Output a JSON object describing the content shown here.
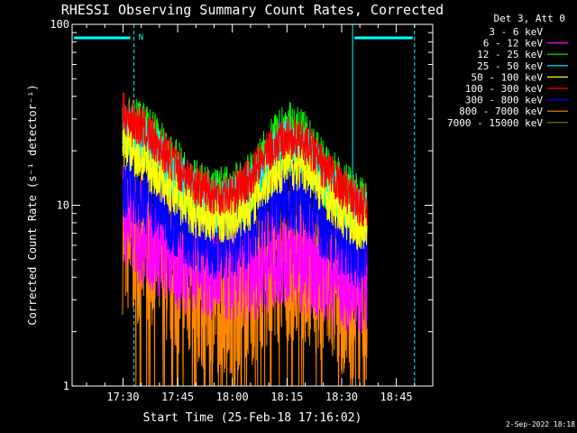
{
  "chart_data": {
    "type": "line",
    "title": "RHESSI Observing Summary Count Rates, Corrected",
    "xlabel": "Start Time (25-Feb-18 17:16:02)",
    "ylabel": "Corrected Count Rate (s⁻¹ detector⁻¹)",
    "yscale": "log",
    "ylim": [
      1,
      100
    ],
    "xlim": [
      "17:16:02",
      "18:55:00"
    ],
    "x_ticks": [
      "17:30",
      "17:45",
      "18:00",
      "18:15",
      "18:30",
      "18:45"
    ],
    "y_ticks": [
      "1",
      "10",
      "100"
    ],
    "legend_title": "Det 3, Att 0",
    "legend_position": "right",
    "timestamp": "2-Sep-2022 18:18",
    "flag_label": "N",
    "grid": false,
    "data_start": "17:29",
    "data_end": "18:37",
    "night_intervals": [
      [
        "17:16",
        "17:33"
      ],
      [
        "18:33",
        "18:50"
      ]
    ],
    "series": [
      {
        "name": "3 - 6 keV",
        "color": "#000000",
        "values": []
      },
      {
        "name": "6 - 12 keV",
        "color": "#ff00ff",
        "x": [
          "17:30",
          "17:35",
          "17:40",
          "17:45",
          "17:50",
          "17:55",
          "18:00",
          "18:05",
          "18:10",
          "18:15",
          "18:20",
          "18:25",
          "18:30",
          "18:35"
        ],
        "values": [
          9,
          7,
          6,
          5,
          5,
          4.5,
          4.3,
          4.5,
          5,
          5.5,
          5,
          4.5,
          4,
          3.8
        ]
      },
      {
        "name": "12 - 25 keV",
        "color": "#00ff00",
        "x": [
          "17:30",
          "17:35",
          "17:40",
          "17:45",
          "17:50",
          "17:55",
          "18:00",
          "18:05",
          "18:10",
          "18:15",
          "18:20",
          "18:25",
          "18:30",
          "18:35"
        ],
        "values": [
          30,
          25,
          20,
          15,
          12,
          11,
          11,
          13,
          19,
          25,
          22,
          15,
          12,
          10
        ]
      },
      {
        "name": "25 - 50 keV",
        "color": "#00ffff",
        "x": [
          "17:30",
          "17:35",
          "17:40",
          "17:45",
          "17:50",
          "17:55",
          "18:00",
          "18:05",
          "18:10",
          "18:15",
          "18:20",
          "18:25",
          "18:30",
          "18:35"
        ],
        "values": [
          28,
          23,
          18,
          14,
          11,
          10,
          10,
          12,
          17,
          22,
          20,
          14,
          11,
          9
        ]
      },
      {
        "name": "50 - 100 keV",
        "color": "#ffff00",
        "x": [
          "17:30",
          "17:35",
          "17:40",
          "17:45",
          "17:50",
          "17:55",
          "18:00",
          "18:05",
          "18:10",
          "18:15",
          "18:20",
          "18:25",
          "18:30",
          "18:35"
        ],
        "values": [
          22,
          18,
          14,
          11,
          9,
          8.5,
          8.5,
          10,
          14,
          17,
          16,
          12,
          9,
          7.5
        ]
      },
      {
        "name": "100 - 300 keV",
        "color": "#ff0000",
        "x": [
          "17:30",
          "17:35",
          "17:40",
          "17:45",
          "17:50",
          "17:55",
          "18:00",
          "18:05",
          "18:10",
          "18:15",
          "18:20",
          "18:25",
          "18:30",
          "18:35"
        ],
        "values": [
          32,
          27,
          21,
          16,
          13,
          11.5,
          11.5,
          14,
          20,
          24,
          22,
          16,
          12.5,
          10
        ]
      },
      {
        "name": "300 - 800 keV",
        "color": "#0000ff",
        "x": [
          "17:30",
          "17:35",
          "17:40",
          "17:45",
          "17:50",
          "17:55",
          "18:00",
          "18:05",
          "18:10",
          "18:15",
          "18:20",
          "18:25",
          "18:30",
          "18:35"
        ],
        "values": [
          14,
          12,
          10,
          8,
          7,
          6.5,
          6.5,
          7.5,
          10,
          11.5,
          10.5,
          8,
          6.5,
          5.5
        ]
      },
      {
        "name": "800 - 7000 keV",
        "color": "#ff8800",
        "x": [
          "17:30",
          "17:35",
          "17:40",
          "17:45",
          "17:50",
          "17:55",
          "18:00",
          "18:05",
          "18:10",
          "18:15",
          "18:20",
          "18:25",
          "18:30",
          "18:35"
        ],
        "values": [
          7,
          6,
          5,
          4,
          3.5,
          3.3,
          3.3,
          3.6,
          4.5,
          5,
          4.6,
          3.8,
          3.2,
          3
        ]
      },
      {
        "name": "7000 - 15000 keV",
        "color": "#808000",
        "values": []
      }
    ]
  }
}
